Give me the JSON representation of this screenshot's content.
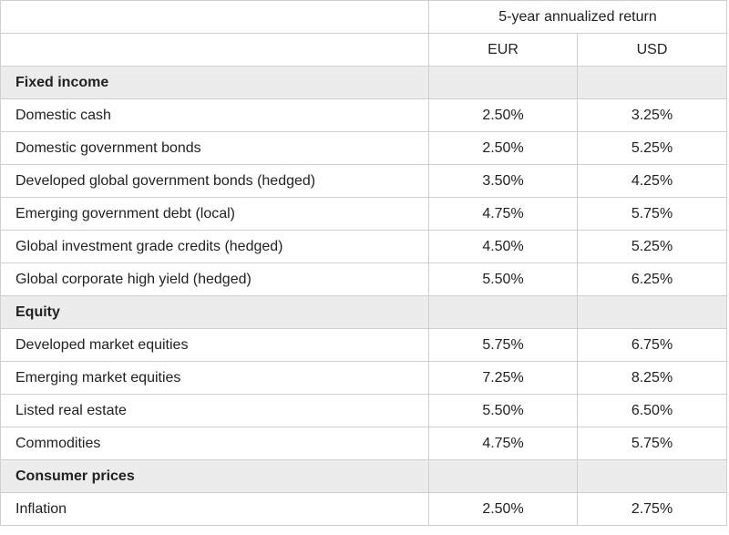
{
  "header": {
    "span_label": "5-year annualized return",
    "columns": [
      "EUR",
      "USD"
    ]
  },
  "groups": [
    {
      "name": "Fixed income",
      "rows": [
        {
          "label": "Domestic cash",
          "eur": "2.50%",
          "usd": "3.25%"
        },
        {
          "label": "Domestic government bonds",
          "eur": "2.50%",
          "usd": "5.25%"
        },
        {
          "label": "Developed global government bonds (hedged)",
          "eur": "3.50%",
          "usd": "4.25%"
        },
        {
          "label": "Emerging government debt (local)",
          "eur": "4.75%",
          "usd": "5.75%"
        },
        {
          "label": "Global investment grade credits (hedged)",
          "eur": "4.50%",
          "usd": "5.25%"
        },
        {
          "label": "Global corporate high yield (hedged)",
          "eur": "5.50%",
          "usd": "6.25%"
        }
      ]
    },
    {
      "name": "Equity",
      "rows": [
        {
          "label": "Developed market equities",
          "eur": "5.75%",
          "usd": "6.75%"
        },
        {
          "label": "Emerging market equities",
          "eur": "7.25%",
          "usd": "8.25%"
        },
        {
          "label": "Listed real estate",
          "eur": "5.50%",
          "usd": "6.50%"
        },
        {
          "label": "Commodities",
          "eur": "4.75%",
          "usd": "5.75%"
        }
      ]
    },
    {
      "name": "Consumer prices",
      "rows": [
        {
          "label": "Inflation",
          "eur": "2.50%",
          "usd": "2.75%"
        }
      ]
    }
  ]
}
